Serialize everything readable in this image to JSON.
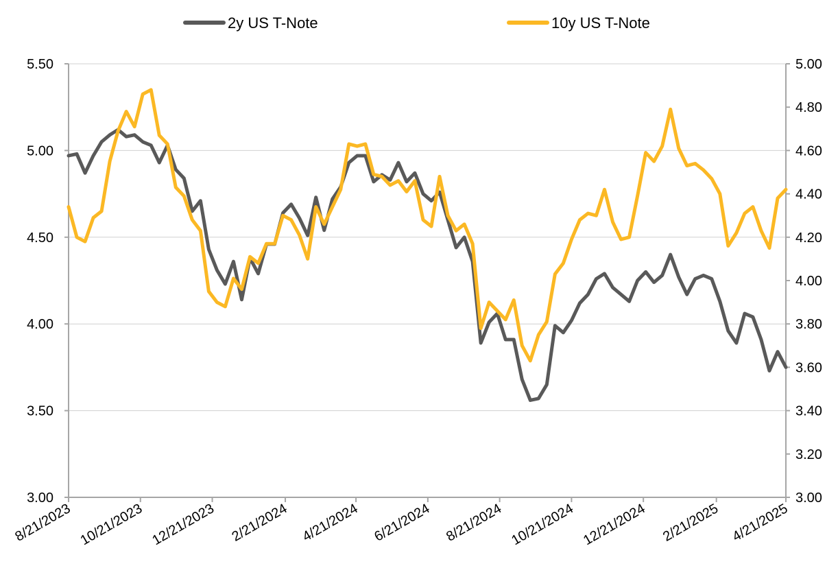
{
  "chart_data": {
    "type": "line",
    "title": "",
    "xlabel": "",
    "ylabel": "",
    "legend_position": "top",
    "grid": true,
    "x_ticks": [
      "8/21/2023",
      "10/21/2023",
      "12/21/2023",
      "2/21/2024",
      "4/21/2024",
      "6/21/2024",
      "8/21/2024",
      "10/21/2024",
      "12/21/2024",
      "2/21/2025",
      "4/21/2025"
    ],
    "y_left": {
      "lim": [
        3.0,
        5.5
      ],
      "ticks": [
        "3.00",
        "3.50",
        "4.00",
        "4.50",
        "5.00",
        "5.50"
      ]
    },
    "y_right": {
      "lim": [
        3.0,
        5.0
      ],
      "ticks": [
        "3.00",
        "3.20",
        "3.40",
        "3.60",
        "3.80",
        "4.00",
        "4.20",
        "4.40",
        "4.60",
        "4.80",
        "5.00"
      ]
    },
    "series": [
      {
        "name": "2y US T-Note",
        "axis": "left",
        "color": "#595959",
        "points": [
          [
            "2023-08-21",
            4.97
          ],
          [
            "2023-08-28",
            4.98
          ],
          [
            "2023-09-04",
            4.87
          ],
          [
            "2023-09-11",
            4.97
          ],
          [
            "2023-09-18",
            5.05
          ],
          [
            "2023-09-25",
            5.09
          ],
          [
            "2023-10-02",
            5.12
          ],
          [
            "2023-10-09",
            5.08
          ],
          [
            "2023-10-16",
            5.09
          ],
          [
            "2023-10-23",
            5.05
          ],
          [
            "2023-10-30",
            5.03
          ],
          [
            "2023-11-06",
            4.93
          ],
          [
            "2023-11-13",
            5.03
          ],
          [
            "2023-11-20",
            4.89
          ],
          [
            "2023-11-27",
            4.84
          ],
          [
            "2023-12-04",
            4.65
          ],
          [
            "2023-12-11",
            4.71
          ],
          [
            "2023-12-18",
            4.43
          ],
          [
            "2023-12-25",
            4.31
          ],
          [
            "2024-01-01",
            4.23
          ],
          [
            "2024-01-08",
            4.36
          ],
          [
            "2024-01-15",
            4.14
          ],
          [
            "2024-01-22",
            4.38
          ],
          [
            "2024-01-29",
            4.29
          ],
          [
            "2024-02-05",
            4.46
          ],
          [
            "2024-02-12",
            4.46
          ],
          [
            "2024-02-19",
            4.64
          ],
          [
            "2024-02-26",
            4.69
          ],
          [
            "2024-03-04",
            4.61
          ],
          [
            "2024-03-11",
            4.51
          ],
          [
            "2024-03-18",
            4.73
          ],
          [
            "2024-03-25",
            4.54
          ],
          [
            "2024-04-01",
            4.72
          ],
          [
            "2024-04-08",
            4.79
          ],
          [
            "2024-04-15",
            4.93
          ],
          [
            "2024-04-22",
            4.97
          ],
          [
            "2024-04-29",
            4.97
          ],
          [
            "2024-05-06",
            4.82
          ],
          [
            "2024-05-13",
            4.86
          ],
          [
            "2024-05-20",
            4.83
          ],
          [
            "2024-05-27",
            4.93
          ],
          [
            "2024-06-03",
            4.82
          ],
          [
            "2024-06-10",
            4.87
          ],
          [
            "2024-06-17",
            4.75
          ],
          [
            "2024-06-24",
            4.71
          ],
          [
            "2024-07-01",
            4.76
          ],
          [
            "2024-07-08",
            4.6
          ],
          [
            "2024-07-15",
            4.44
          ],
          [
            "2024-07-22",
            4.5
          ],
          [
            "2024-07-29",
            4.36
          ],
          [
            "2024-08-05",
            3.89
          ],
          [
            "2024-08-12",
            4.01
          ],
          [
            "2024-08-19",
            4.06
          ],
          [
            "2024-08-26",
            3.91
          ],
          [
            "2024-09-02",
            3.91
          ],
          [
            "2024-09-09",
            3.68
          ],
          [
            "2024-09-16",
            3.56
          ],
          [
            "2024-09-23",
            3.57
          ],
          [
            "2024-09-30",
            3.65
          ],
          [
            "2024-10-07",
            3.99
          ],
          [
            "2024-10-14",
            3.95
          ],
          [
            "2024-10-21",
            4.02
          ],
          [
            "2024-10-28",
            4.12
          ],
          [
            "2024-11-04",
            4.17
          ],
          [
            "2024-11-11",
            4.26
          ],
          [
            "2024-11-18",
            4.29
          ],
          [
            "2024-11-25",
            4.21
          ],
          [
            "2024-12-02",
            4.17
          ],
          [
            "2024-12-09",
            4.13
          ],
          [
            "2024-12-16",
            4.25
          ],
          [
            "2024-12-23",
            4.3
          ],
          [
            "2024-12-30",
            4.24
          ],
          [
            "2025-01-06",
            4.28
          ],
          [
            "2025-01-13",
            4.4
          ],
          [
            "2025-01-20",
            4.27
          ],
          [
            "2025-01-27",
            4.17
          ],
          [
            "2025-02-03",
            4.26
          ],
          [
            "2025-02-10",
            4.28
          ],
          [
            "2025-02-17",
            4.26
          ],
          [
            "2025-02-24",
            4.13
          ],
          [
            "2025-03-03",
            3.96
          ],
          [
            "2025-03-10",
            3.89
          ],
          [
            "2025-03-17",
            4.06
          ],
          [
            "2025-03-24",
            4.04
          ],
          [
            "2025-03-31",
            3.91
          ],
          [
            "2025-04-07",
            3.73
          ],
          [
            "2025-04-14",
            3.84
          ],
          [
            "2025-04-21",
            3.75
          ]
        ]
      },
      {
        "name": "10y US T-Note",
        "axis": "right",
        "color": "#FBB824",
        "points": [
          [
            "2023-08-21",
            4.34
          ],
          [
            "2023-08-28",
            4.2
          ],
          [
            "2023-09-04",
            4.18
          ],
          [
            "2023-09-11",
            4.29
          ],
          [
            "2023-09-18",
            4.32
          ],
          [
            "2023-09-25",
            4.55
          ],
          [
            "2023-10-02",
            4.69
          ],
          [
            "2023-10-09",
            4.78
          ],
          [
            "2023-10-16",
            4.71
          ],
          [
            "2023-10-23",
            4.86
          ],
          [
            "2023-10-30",
            4.88
          ],
          [
            "2023-11-06",
            4.67
          ],
          [
            "2023-11-13",
            4.63
          ],
          [
            "2023-11-20",
            4.43
          ],
          [
            "2023-11-27",
            4.39
          ],
          [
            "2023-12-04",
            4.28
          ],
          [
            "2023-12-11",
            4.23
          ],
          [
            "2023-12-18",
            3.95
          ],
          [
            "2023-12-25",
            3.9
          ],
          [
            "2024-01-01",
            3.88
          ],
          [
            "2024-01-08",
            4.01
          ],
          [
            "2024-01-15",
            3.96
          ],
          [
            "2024-01-22",
            4.11
          ],
          [
            "2024-01-29",
            4.08
          ],
          [
            "2024-02-05",
            4.17
          ],
          [
            "2024-02-12",
            4.17
          ],
          [
            "2024-02-19",
            4.3
          ],
          [
            "2024-02-26",
            4.28
          ],
          [
            "2024-03-04",
            4.21
          ],
          [
            "2024-03-11",
            4.1
          ],
          [
            "2024-03-18",
            4.34
          ],
          [
            "2024-03-25",
            4.26
          ],
          [
            "2024-04-01",
            4.34
          ],
          [
            "2024-04-08",
            4.42
          ],
          [
            "2024-04-15",
            4.63
          ],
          [
            "2024-04-22",
            4.62
          ],
          [
            "2024-04-29",
            4.63
          ],
          [
            "2024-05-06",
            4.49
          ],
          [
            "2024-05-13",
            4.48
          ],
          [
            "2024-05-20",
            4.44
          ],
          [
            "2024-05-27",
            4.46
          ],
          [
            "2024-06-03",
            4.41
          ],
          [
            "2024-06-10",
            4.46
          ],
          [
            "2024-06-17",
            4.28
          ],
          [
            "2024-06-24",
            4.25
          ],
          [
            "2024-07-01",
            4.48
          ],
          [
            "2024-07-08",
            4.3
          ],
          [
            "2024-07-15",
            4.23
          ],
          [
            "2024-07-22",
            4.26
          ],
          [
            "2024-07-29",
            4.17
          ],
          [
            "2024-08-05",
            3.78
          ],
          [
            "2024-08-12",
            3.9
          ],
          [
            "2024-08-19",
            3.86
          ],
          [
            "2024-08-26",
            3.82
          ],
          [
            "2024-09-02",
            3.91
          ],
          [
            "2024-09-09",
            3.7
          ],
          [
            "2024-09-16",
            3.63
          ],
          [
            "2024-09-23",
            3.75
          ],
          [
            "2024-09-30",
            3.81
          ],
          [
            "2024-10-07",
            4.03
          ],
          [
            "2024-10-14",
            4.08
          ],
          [
            "2024-10-21",
            4.19
          ],
          [
            "2024-10-28",
            4.28
          ],
          [
            "2024-11-04",
            4.31
          ],
          [
            "2024-11-11",
            4.3
          ],
          [
            "2024-11-18",
            4.42
          ],
          [
            "2024-11-25",
            4.27
          ],
          [
            "2024-12-02",
            4.19
          ],
          [
            "2024-12-09",
            4.2
          ],
          [
            "2024-12-16",
            4.39
          ],
          [
            "2024-12-23",
            4.59
          ],
          [
            "2024-12-30",
            4.55
          ],
          [
            "2025-01-06",
            4.62
          ],
          [
            "2025-01-13",
            4.79
          ],
          [
            "2025-01-20",
            4.61
          ],
          [
            "2025-01-27",
            4.53
          ],
          [
            "2025-02-03",
            4.54
          ],
          [
            "2025-02-10",
            4.51
          ],
          [
            "2025-02-17",
            4.47
          ],
          [
            "2025-02-24",
            4.4
          ],
          [
            "2025-03-03",
            4.16
          ],
          [
            "2025-03-10",
            4.22
          ],
          [
            "2025-03-17",
            4.31
          ],
          [
            "2025-03-24",
            4.34
          ],
          [
            "2025-03-31",
            4.23
          ],
          [
            "2025-04-07",
            4.15
          ],
          [
            "2025-04-14",
            4.38
          ],
          [
            "2025-04-21",
            4.42
          ]
        ]
      }
    ]
  }
}
